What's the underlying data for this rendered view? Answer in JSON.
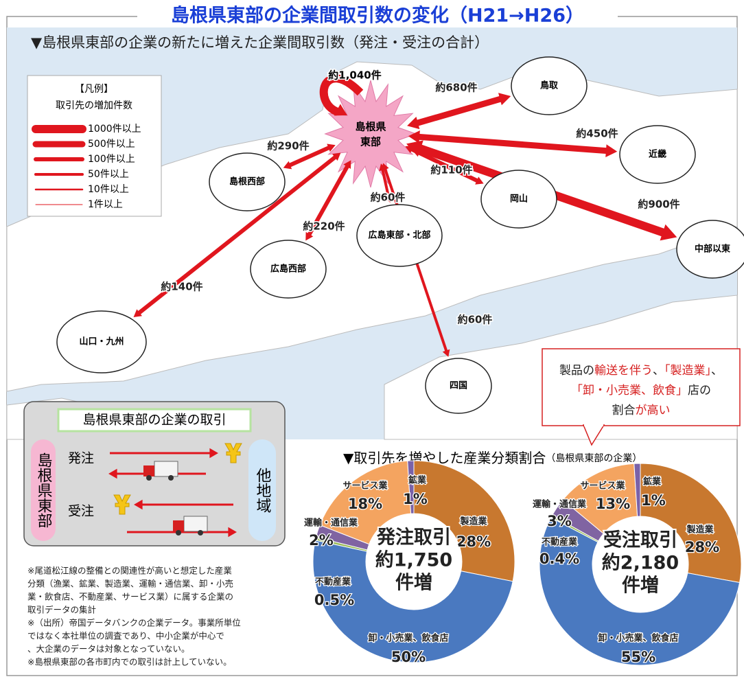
{
  "header": {
    "title": "島根県東部の企業間取引数の変化（H21→H26）"
  },
  "map": {
    "subtitle": "▼島根県東部の企業の新たに増えた企業間取引数（発注・受注の合計）",
    "legend": {
      "title": [
        "【凡例】",
        "取引先の増加件数"
      ],
      "items": [
        "1000件以上",
        "500件以上",
        "100件以上",
        "50件以上",
        "10件以上",
        "1件以上"
      ]
    },
    "center": [
      "島根県",
      "東部"
    ],
    "self_flow": "約1,040件",
    "regions": [
      {
        "name": "鳥取",
        "flow": "約680件"
      },
      {
        "name": "近畿",
        "flow": "約450件"
      },
      {
        "name": "島根西部",
        "flow": "約290件"
      },
      {
        "name": "岡山",
        "flow": "約110件"
      },
      {
        "name": "広島東部・北部",
        "flow": "約60件"
      },
      {
        "name": "中部以東",
        "flow": "約900件"
      },
      {
        "name": "広島西部",
        "flow": "約220件"
      },
      {
        "name": "山口・九州",
        "flow": "約140件"
      },
      {
        "name": "四国",
        "flow": "約60件"
      }
    ]
  },
  "inset": {
    "title": "島根県東部の企業の取引",
    "left": "島根県東部",
    "right": "他地域",
    "order": "発注",
    "receive": "受注"
  },
  "notes": [
    [
      "※尾道松江線の整備との関連性が高いと想定した産業",
      "分類（漁業、鉱業、製造業、運輸・通信業、卸・小売",
      "業・飲食店、不動産業、サービス業）に属する企業の",
      "取引データの集計"
    ],
    [
      "※（出所）帝国データバンクの企業データ。事業所単位",
      "ではなく本社単位の調査であり、中小企業が中心で",
      "、大企業のデータは対象となっていない。"
    ],
    [
      "※島根県東部の各市町内での取引は計上していない。"
    ]
  ],
  "callout": {
    "lines": [
      [
        {
          "text": "製品の",
          "highlight": false
        },
        {
          "text": "輸送を伴う",
          "highlight": true
        },
        {
          "text": "、",
          "highlight": false
        },
        {
          "text": "「製造業」",
          "highlight": true
        },
        {
          "text": "、",
          "highlight": false
        }
      ],
      [
        {
          "text": "「卸・小売業、飲食」",
          "highlight": true
        },
        {
          "text": "店の",
          "highlight": false
        }
      ],
      [
        {
          "text": "割合",
          "highlight": false
        },
        {
          "text": "が高い",
          "highlight": true
        }
      ]
    ]
  },
  "industry": {
    "title": "▼取引先を増やした産業分類割合",
    "note": "（島根県東部の企業）"
  },
  "chart_data": [
    {
      "type": "donut",
      "center_label": [
        "発注取引",
        "約1,750",
        "件増"
      ],
      "categories": [
        "製造業",
        "卸・小売業、飲食店",
        "不動産業",
        "運輸・通信業",
        "サービス業",
        "鉱業"
      ],
      "values": [
        28,
        50,
        0.5,
        2,
        18,
        1
      ],
      "value_labels": [
        "28%",
        "50%",
        "0.5%",
        "2%",
        "18%",
        "1%"
      ],
      "colors": [
        "#c8782f",
        "#4a79c0",
        "#9bbb59",
        "#8064a2",
        "#f4a460",
        "#7a62a8"
      ]
    },
    {
      "type": "donut",
      "center_label": [
        "受注取引",
        "約2,180",
        "件増"
      ],
      "categories": [
        "製造業",
        "卸・小売業、飲食店",
        "不動産業",
        "運輸・通信業",
        "サービス業",
        "鉱業"
      ],
      "values": [
        28,
        55,
        0.4,
        3,
        13,
        1
      ],
      "value_labels": [
        "28%",
        "55%",
        "0.4%",
        "3%",
        "13%",
        "1%"
      ],
      "colors": [
        "#c8782f",
        "#4a79c0",
        "#9bbb59",
        "#8064a2",
        "#f4a460",
        "#7a62a8"
      ]
    }
  ]
}
